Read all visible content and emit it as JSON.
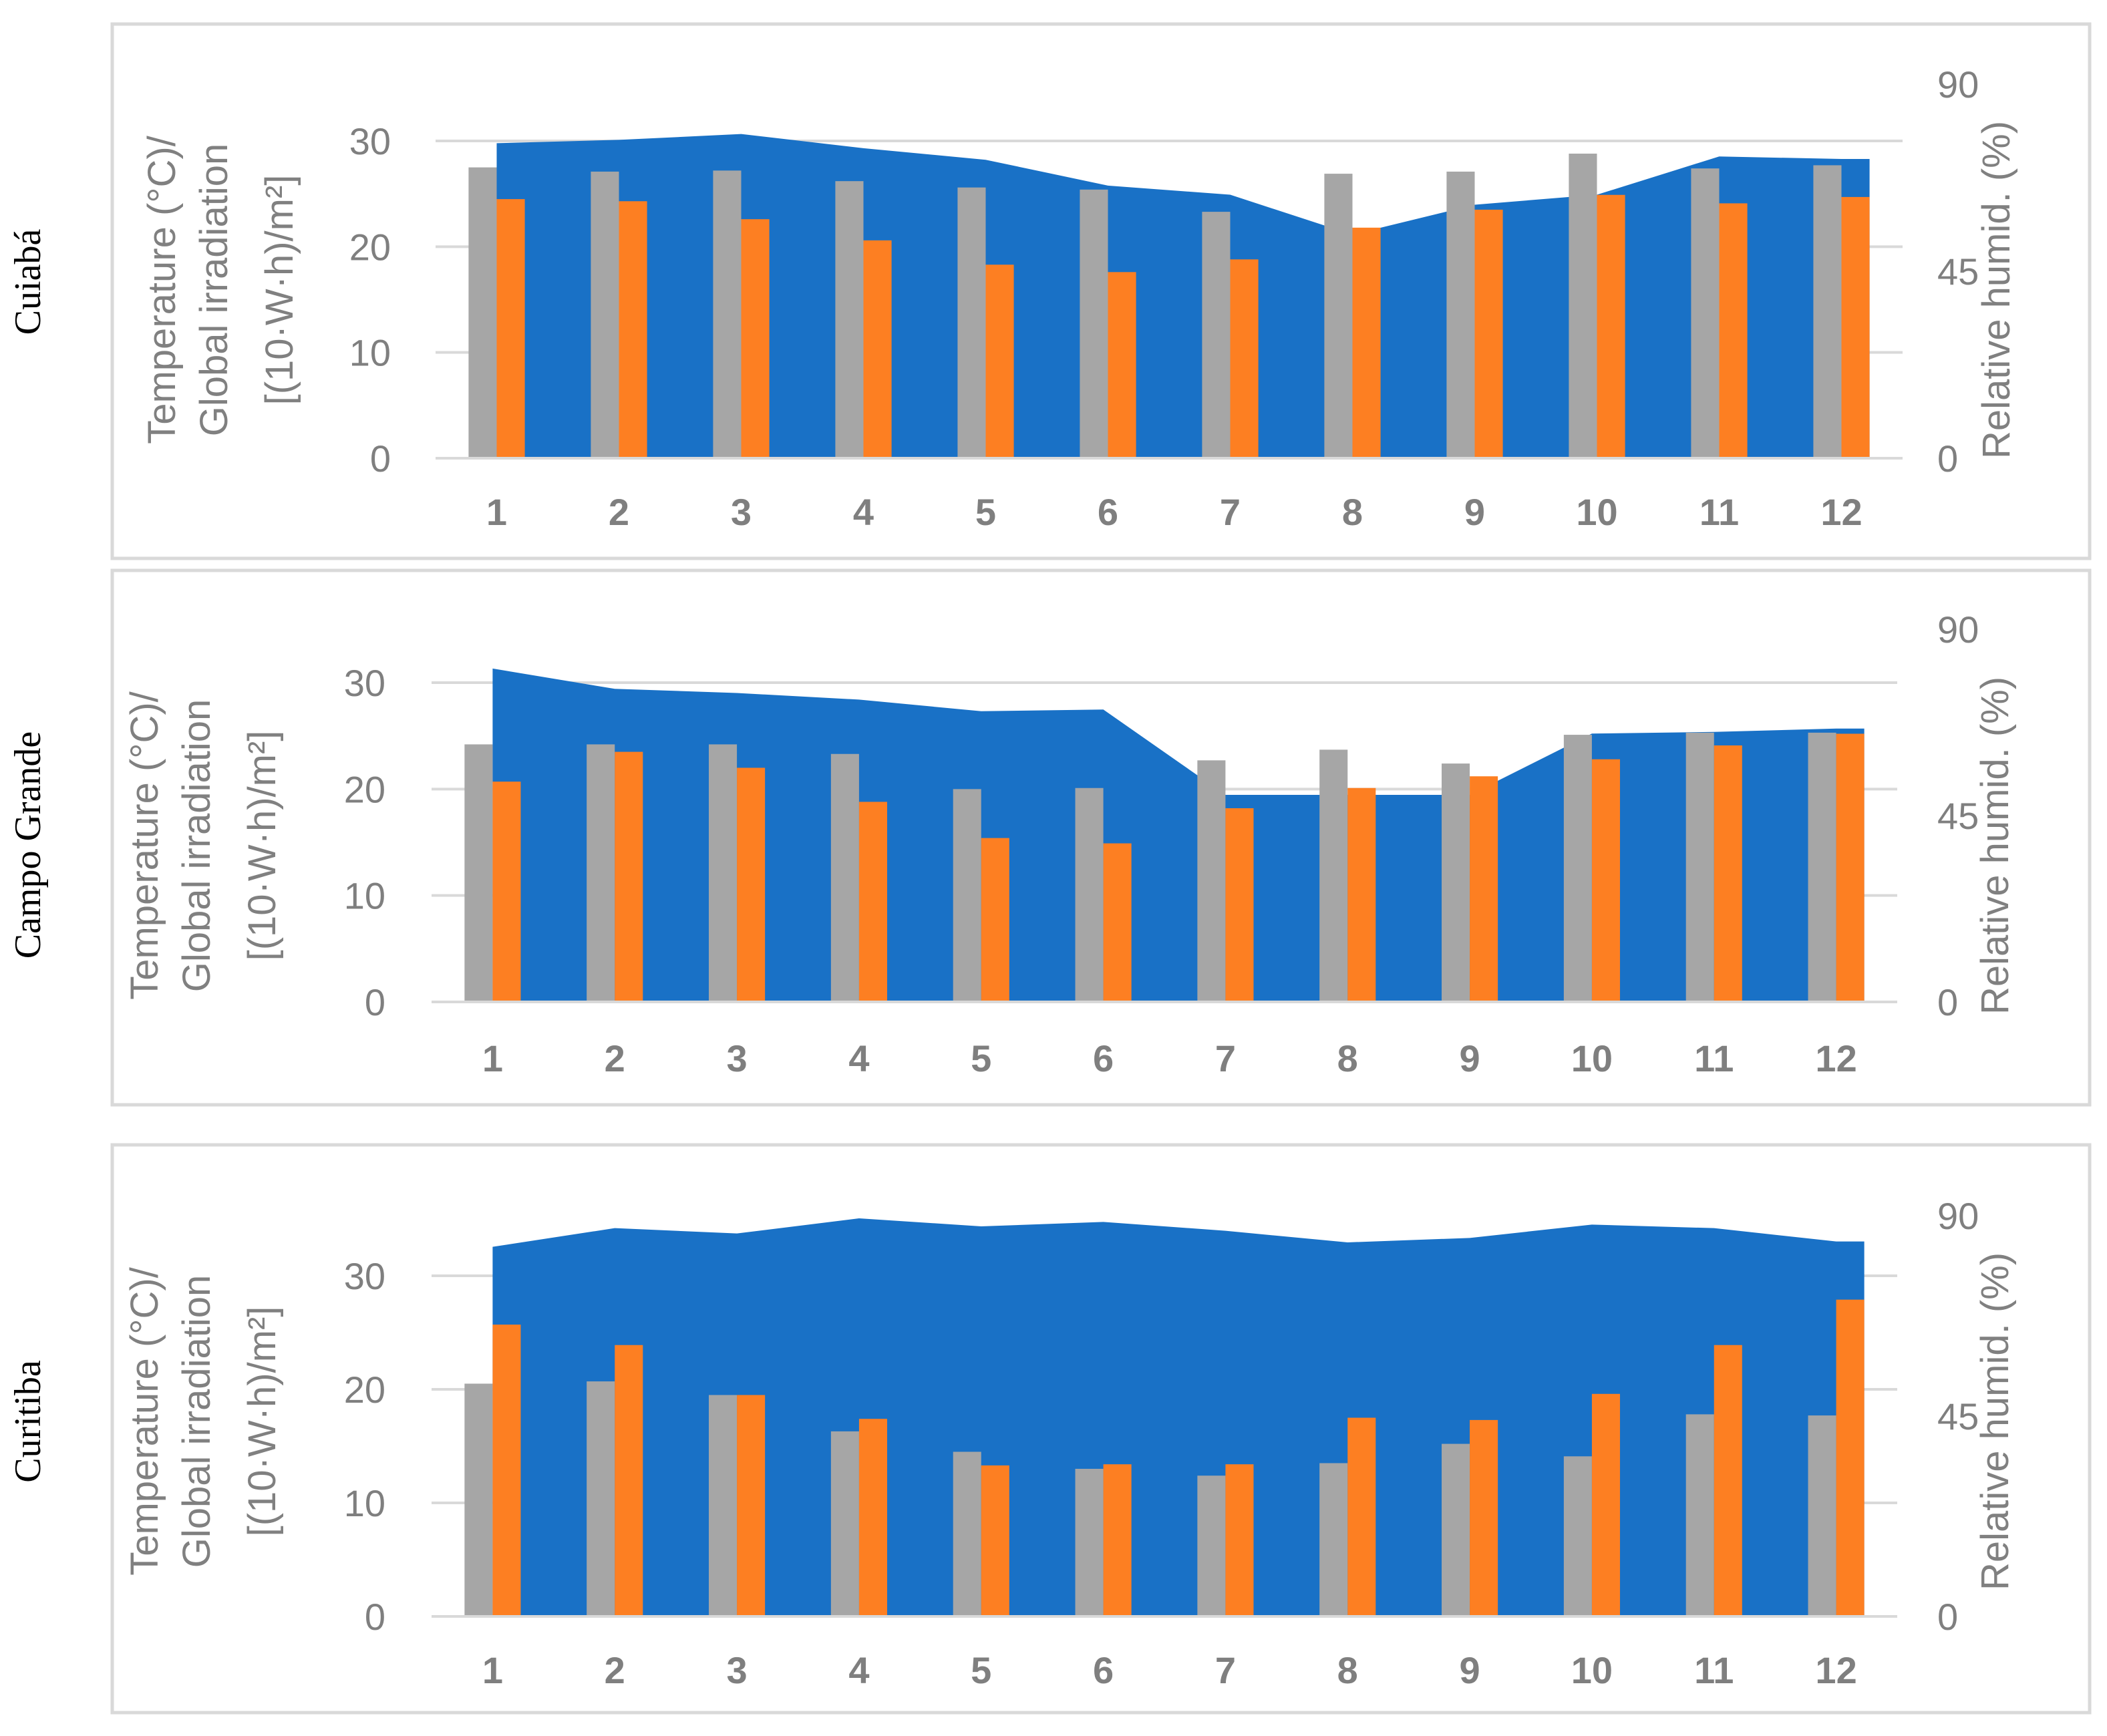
{
  "colors": {
    "humidity_area": "#1971c6",
    "temperature_bar": "#a6a6a6",
    "irradiation_bar": "#fd7f22",
    "gridline": "#d9d9d9",
    "panel_border": "#d9d9d9",
    "tick_text": "#7f7f7f"
  },
  "chart_data": [
    {
      "type": "bar",
      "city": "Cuiabá",
      "y_left_label_lines": [
        "Temperature (°C)/",
        "Global irradiation",
        "[(10·W·h)/m²]"
      ],
      "y_right_label": "Relative humid. (%)",
      "categories": [
        "1",
        "2",
        "3",
        "4",
        "5",
        "6",
        "7",
        "8",
        "9",
        "10",
        "11",
        "12"
      ],
      "y_left_ticks": [
        "0",
        "10",
        "20",
        "30"
      ],
      "y_right_ticks": [
        "0",
        "45",
        "90"
      ],
      "ylim_left": [
        0,
        35
      ],
      "ylim_right": [
        0,
        90
      ],
      "series": [
        {
          "name": "Relative humidity",
          "type": "area",
          "axis": "right",
          "values": [
            75.8,
            76.6,
            78.0,
            74.6,
            71.8,
            65.6,
            63.4,
            53.8,
            61.0,
            63.4,
            72.6,
            72.0
          ]
        },
        {
          "name": "Temperature",
          "type": "bar",
          "axis": "left",
          "values": [
            27.5,
            27.1,
            27.2,
            26.2,
            25.6,
            25.4,
            23.3,
            26.9,
            27.1,
            28.8,
            27.4,
            27.7
          ]
        },
        {
          "name": "Global irradiation",
          "type": "bar",
          "axis": "left",
          "values": [
            24.5,
            24.3,
            22.6,
            20.6,
            18.3,
            17.6,
            18.8,
            21.8,
            23.5,
            24.9,
            24.1,
            24.7
          ]
        }
      ]
    },
    {
      "type": "bar",
      "city": "Campo Grande",
      "y_left_label_lines": [
        "Temperature (°C)/",
        "Global irradiation",
        "[(10·W·h)/m²]"
      ],
      "y_right_label": "Relative humid. (%)",
      "categories": [
        "1",
        "2",
        "3",
        "4",
        "5",
        "6",
        "7",
        "8",
        "9",
        "10",
        "11",
        "12"
      ],
      "y_left_ticks": [
        "0",
        "10",
        "20",
        "30"
      ],
      "y_right_ticks": [
        "0",
        "45",
        "90"
      ],
      "ylim_left": [
        0,
        35
      ],
      "ylim_right": [
        0,
        90
      ],
      "series": [
        {
          "name": "Relative humidity",
          "type": "area",
          "axis": "right",
          "values": [
            80.5,
            75.6,
            74.6,
            73.0,
            70.2,
            70.6,
            50.0,
            50.0,
            50.0,
            64.8,
            65.2,
            66.0
          ]
        },
        {
          "name": "Temperature",
          "type": "bar",
          "axis": "left",
          "values": [
            24.2,
            24.2,
            24.2,
            23.3,
            20.0,
            20.1,
            22.7,
            23.7,
            22.4,
            25.1,
            25.3,
            25.3
          ]
        },
        {
          "name": "Global irradiation",
          "type": "bar",
          "axis": "left",
          "values": [
            20.7,
            23.5,
            22.0,
            18.8,
            15.4,
            14.9,
            18.2,
            20.1,
            21.2,
            22.8,
            24.1,
            25.2
          ]
        }
      ]
    },
    {
      "type": "bar",
      "city": "Curitiba",
      "y_left_label_lines": [
        "Temperature (°C)/",
        "Global irradiation",
        "[(10·W·h)/m²]"
      ],
      "y_right_label": "Relative humid. (%)",
      "categories": [
        "1",
        "2",
        "3",
        "4",
        "5",
        "6",
        "7",
        "8",
        "9",
        "10",
        "11",
        "12"
      ],
      "y_left_ticks": [
        "0",
        "10",
        "20",
        "30"
      ],
      "y_right_ticks": [
        "0",
        "45",
        "90"
      ],
      "ylim_left": [
        0,
        35
      ],
      "ylim_right": [
        0,
        90
      ],
      "series": [
        {
          "name": "Relative humidity",
          "type": "area",
          "axis": "right",
          "values": [
            83.0,
            87.2,
            86.0,
            89.4,
            87.6,
            88.6,
            86.6,
            84.0,
            85.0,
            88.0,
            87.2,
            84.2
          ]
        },
        {
          "name": "Temperature",
          "type": "bar",
          "axis": "left",
          "values": [
            20.5,
            20.7,
            19.5,
            16.3,
            14.5,
            13.0,
            12.4,
            13.5,
            15.2,
            14.1,
            17.8,
            17.7
          ]
        },
        {
          "name": "Global irradiation",
          "type": "bar",
          "axis": "left",
          "values": [
            25.7,
            23.9,
            19.5,
            17.4,
            13.3,
            13.4,
            13.4,
            17.5,
            17.3,
            19.6,
            23.9,
            27.9
          ]
        }
      ]
    }
  ]
}
